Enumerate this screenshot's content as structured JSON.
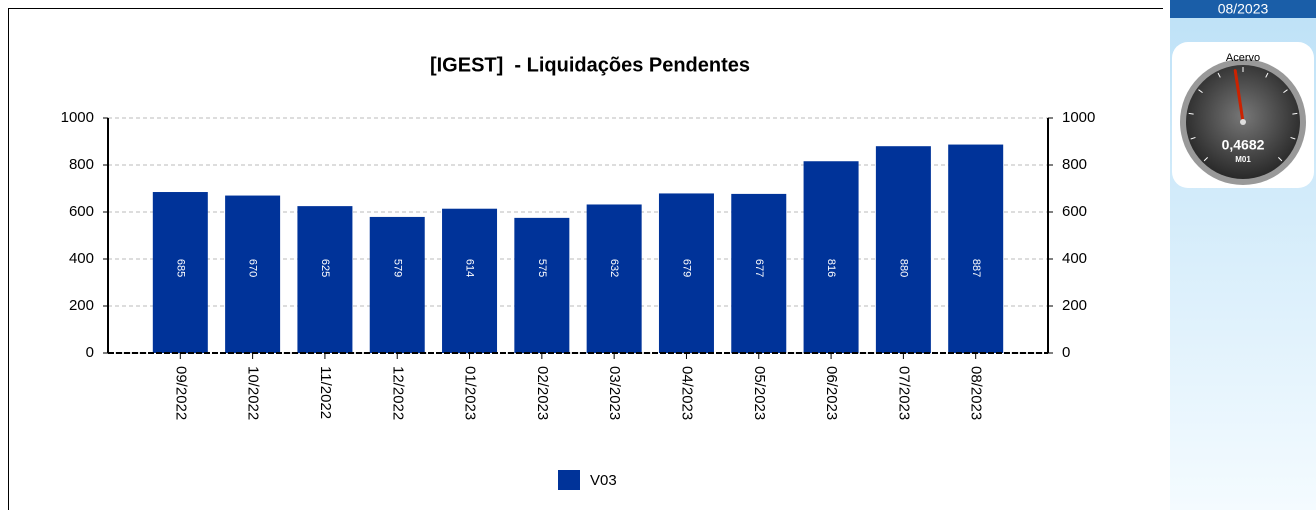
{
  "chart_data": {
    "type": "bar",
    "title": "[IGEST]  - Liquidações Pendentes",
    "categories": [
      "09/2022",
      "10/2022",
      "11/2022",
      "12/2022",
      "01/2023",
      "02/2023",
      "03/2023",
      "04/2023",
      "05/2023",
      "06/2023",
      "07/2023",
      "08/2023"
    ],
    "series": [
      {
        "name": "V03",
        "color": "#003399",
        "values": [
          685,
          670,
          625,
          579,
          614,
          575,
          632,
          679,
          677,
          816,
          880,
          887
        ]
      }
    ],
    "ylim": [
      0,
      1000
    ],
    "yticks": [
      0,
      200,
      400,
      600,
      800,
      1000
    ],
    "grid": true
  },
  "panel": {
    "date": "08/2023",
    "gauge": {
      "label": "Acervo",
      "value": 0.4682,
      "value_label": "0,4682",
      "unit": "M01",
      "range": [
        0,
        1
      ]
    }
  }
}
